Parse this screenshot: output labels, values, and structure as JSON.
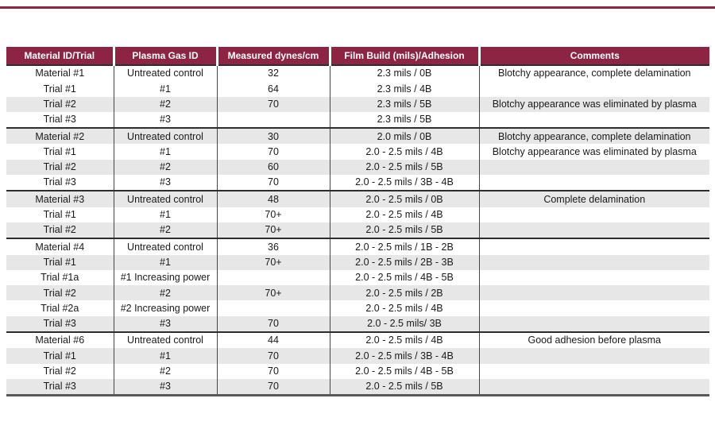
{
  "page": {
    "top_rule_color": "#8e2444"
  },
  "table": {
    "header_bg": "#8e2444",
    "header_text_color": "#ffffff",
    "stripe_color": "#e7e7e7",
    "columns": [
      {
        "key": "material-id-trial",
        "label": "Material ID/Trial"
      },
      {
        "key": "plasma-gas-id",
        "label": "Plasma Gas ID"
      },
      {
        "key": "measured-dynes",
        "label": "Measured dynes/cm"
      },
      {
        "key": "film-build-adhesion",
        "label": "Film Build (mils)/Adhesion"
      },
      {
        "key": "comments",
        "label": "Comments"
      }
    ],
    "sections": [
      {
        "rows": [
          [
            "Material #1",
            "Untreated control",
            "32",
            "2.3 mils / 0B",
            "Blotchy appearance, complete delamination"
          ],
          [
            "Trial #1",
            "#1",
            "64",
            "2.3 mils / 4B",
            ""
          ],
          [
            "Trial #2",
            "#2",
            "70",
            "2.3 mils / 5B",
            "Blotchy appearance was eliminated by plasma"
          ],
          [
            "Trial #3",
            "#3",
            "",
            "2.3 mils / 5B",
            ""
          ]
        ]
      },
      {
        "rows": [
          [
            "Material #2",
            "Untreated control",
            "30",
            "2.0 mils / 0B",
            "Blotchy appearance, complete delamination"
          ],
          [
            "Trial #1",
            "#1",
            "70",
            "2.0 - 2.5 mils / 4B",
            "Blotchy appearance was eliminated by plasma"
          ],
          [
            "Trial #2",
            "#2",
            "60",
            "2.0 - 2.5 mils / 5B",
            ""
          ],
          [
            "Trial #3",
            "#3",
            "70",
            "2.0 - 2.5 mils / 3B - 4B",
            ""
          ]
        ]
      },
      {
        "rows": [
          [
            "Material #3",
            "Untreated control",
            "48",
            "2.0 - 2.5 mils / 0B",
            "Complete delamination"
          ],
          [
            "Trial #1",
            "#1",
            "70+",
            "2.0 - 2.5 mils / 4B",
            ""
          ],
          [
            "Trial #2",
            "#2",
            "70+",
            "2.0 - 2.5 mils / 5B",
            ""
          ]
        ]
      },
      {
        "rows": [
          [
            "Material #4",
            "Untreated control",
            "36",
            "2.0 - 2.5 mils / 1B - 2B",
            ""
          ],
          [
            "Trial #1",
            "#1",
            "70+",
            "2.0 - 2.5 mils / 2B - 3B",
            ""
          ],
          [
            "Trial #1a",
            "#1 Increasing power",
            "",
            "2.0 - 2.5 mils / 4B - 5B",
            ""
          ],
          [
            "Trial #2",
            "#2",
            "70+",
            "2.0 - 2.5 mils / 2B",
            ""
          ],
          [
            "Trial #2a",
            "#2 Increasing power",
            "",
            "2.0 - 2.5 mils / 4B",
            ""
          ],
          [
            "Trial #3",
            "#3",
            "70",
            "2.0 - 2.5 mils/ 3B",
            ""
          ]
        ]
      },
      {
        "rows": [
          [
            "Material #6",
            "Untreated control",
            "44",
            "2.0 - 2.5 mils / 4B",
            "Good adhesion before plasma"
          ],
          [
            "Trial #1",
            "#1",
            "70",
            "2.0 - 2.5 mils / 3B - 4B",
            ""
          ],
          [
            "Trial #2",
            "#2",
            "70",
            "2.0 - 2.5 mils / 4B - 5B",
            ""
          ],
          [
            "Trial #3",
            "#3",
            "70",
            "2.0 - 2.5 mils / 5B",
            ""
          ]
        ]
      }
    ]
  },
  "chart_data": {
    "type": "table",
    "headers": [
      "Material ID/Trial",
      "Plasma Gas ID",
      "Measured dynes/cm",
      "Film Build (mils)/Adhesion",
      "Comments"
    ],
    "rows": [
      [
        "Material #1",
        "Untreated control",
        "32",
        "2.3 mils / 0B",
        "Blotchy appearance, complete delamination"
      ],
      [
        "Trial #1",
        "#1",
        "64",
        "2.3 mils / 4B",
        ""
      ],
      [
        "Trial #2",
        "#2",
        "70",
        "2.3 mils / 5B",
        "Blotchy appearance was eliminated by plasma"
      ],
      [
        "Trial #3",
        "#3",
        "",
        "2.3 mils / 5B",
        ""
      ],
      [
        "Material #2",
        "Untreated control",
        "30",
        "2.0 mils / 0B",
        "Blotchy appearance, complete delamination"
      ],
      [
        "Trial #1",
        "#1",
        "70",
        "2.0 - 2.5 mils / 4B",
        "Blotchy appearance was eliminated by plasma"
      ],
      [
        "Trial #2",
        "#2",
        "60",
        "2.0 - 2.5 mils / 5B",
        ""
      ],
      [
        "Trial #3",
        "#3",
        "70",
        "2.0 - 2.5 mils / 3B - 4B",
        ""
      ],
      [
        "Material #3",
        "Untreated control",
        "48",
        "2.0 - 2.5 mils / 0B",
        "Complete delamination"
      ],
      [
        "Trial #1",
        "#1",
        "70+",
        "2.0 - 2.5 mils / 4B",
        ""
      ],
      [
        "Trial #2",
        "#2",
        "70+",
        "2.0 - 2.5 mils / 5B",
        ""
      ],
      [
        "Material #4",
        "Untreated control",
        "36",
        "2.0 - 2.5 mils / 1B - 2B",
        ""
      ],
      [
        "Trial #1",
        "#1",
        "70+",
        "2.0 - 2.5 mils / 2B - 3B",
        ""
      ],
      [
        "Trial #1a",
        "#1 Increasing power",
        "",
        "2.0 - 2.5 mils / 4B - 5B",
        ""
      ],
      [
        "Trial #2",
        "#2",
        "70+",
        "2.0 - 2.5 mils / 2B",
        ""
      ],
      [
        "Trial #2a",
        "#2 Increasing power",
        "",
        "2.0 - 2.5 mils / 4B",
        ""
      ],
      [
        "Trial #3",
        "#3",
        "70",
        "2.0 - 2.5 mils/ 3B",
        ""
      ],
      [
        "Material #6",
        "Untreated control",
        "44",
        "2.0 - 2.5 mils / 4B",
        "Good adhesion before plasma"
      ],
      [
        "Trial #1",
        "#1",
        "70",
        "2.0 - 2.5 mils / 3B - 4B",
        ""
      ],
      [
        "Trial #2",
        "#2",
        "70",
        "2.0 - 2.5 mils / 4B - 5B",
        ""
      ],
      [
        "Trial #3",
        "#3",
        "70",
        "2.0 - 2.5 mils / 5B",
        ""
      ]
    ]
  }
}
